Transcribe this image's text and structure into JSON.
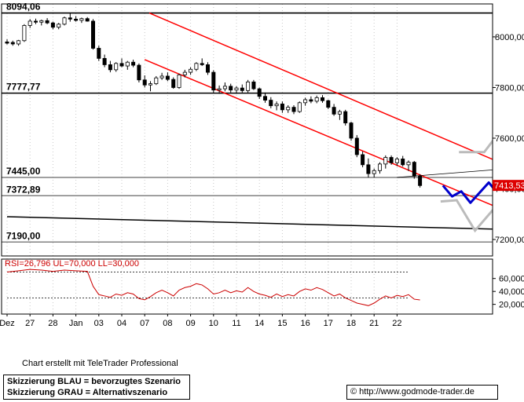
{
  "chart_data": {
    "type": "candlestick",
    "main_panel": {
      "y_axis_ticks": [
        8000,
        7800,
        7600,
        7400,
        7200
      ],
      "y_axis_tick_labels": [
        "8000,00",
        "7800,00",
        "7600,00",
        "7400,00",
        "7200,00"
      ],
      "ylim": [
        7135,
        8130
      ],
      "last_price_label": "7413,53",
      "last_price": 7413.53,
      "horizontal_levels": [
        {
          "value": 8094.06,
          "label": "8094,06",
          "color": "#000000"
        },
        {
          "value": 7777.77,
          "label": "7777,77",
          "color": "#000000"
        },
        {
          "value": 7445.0,
          "label": "7445,00",
          "color": "#808080"
        },
        {
          "value": 7372.89,
          "label": "7372,89",
          "color": "#808080"
        },
        {
          "value": 7190.0,
          "label": "7190,00",
          "color": "#808080"
        }
      ],
      "trend_channel": {
        "color": "#ff0000",
        "upper": [
          [
            6.2,
            8094
          ],
          [
            23.4,
            7430
          ]
        ],
        "lower": [
          [
            6.0,
            7910
          ],
          [
            23.4,
            7250
          ]
        ]
      },
      "long_trendline": {
        "color": "#000000",
        "points": [
          [
            0,
            7290
          ],
          [
            23.0,
            7237
          ]
        ]
      },
      "thin_trendline": {
        "color": "#000000",
        "points": [
          [
            17.0,
            7445
          ],
          [
            22.6,
            7485
          ]
        ]
      },
      "scenario_blue": {
        "name": "Skizzierung BLAU = bevorzugtes Szenario",
        "color": "#0000cc",
        "points": [
          [
            19.0,
            7413
          ],
          [
            19.4,
            7370
          ],
          [
            19.8,
            7390
          ],
          [
            20.2,
            7345
          ],
          [
            21.0,
            7425
          ],
          [
            21.4,
            7380
          ],
          [
            22.4,
            7500
          ],
          [
            23.2,
            7400
          ],
          [
            24.8,
            7205
          ],
          [
            25.6,
            7300
          ]
        ]
      },
      "scenario_gray": {
        "name": "Skizzierung GRAU = Alternativszenario",
        "color": "#bbbbbb",
        "upper": [
          [
            19.7,
            7545
          ],
          [
            20.8,
            7545
          ],
          [
            21.6,
            7640
          ],
          [
            22.2,
            7510
          ],
          [
            23.2,
            7780
          ],
          [
            23.8,
            7605
          ]
        ],
        "lower": [
          [
            18.9,
            7350
          ],
          [
            19.6,
            7355
          ],
          [
            20.4,
            7235
          ],
          [
            21.4,
            7340
          ],
          [
            22.2,
            7200
          ],
          [
            22.9,
            7360
          ]
        ]
      },
      "candles": [
        [
          0.0,
          7980,
          7990,
          7970,
          7975
        ],
        [
          0.25,
          7978,
          7985,
          7965,
          7972
        ],
        [
          0.5,
          7972,
          7988,
          7965,
          7985
        ],
        [
          0.75,
          7985,
          8050,
          7980,
          8045
        ],
        [
          1.0,
          8045,
          8070,
          8035,
          8062
        ],
        [
          1.25,
          8062,
          8072,
          8050,
          8058
        ],
        [
          1.5,
          8058,
          8068,
          8045,
          8064
        ],
        [
          1.75,
          8064,
          8074,
          8050,
          8055
        ],
        [
          2.0,
          8055,
          8060,
          8030,
          8038
        ],
        [
          2.25,
          8038,
          8055,
          8030,
          8050
        ],
        [
          2.5,
          8050,
          8080,
          8045,
          8075
        ],
        [
          2.75,
          8075,
          8094,
          8060,
          8070
        ],
        [
          3.0,
          8070,
          8082,
          8060,
          8065
        ],
        [
          3.25,
          8065,
          8076,
          8055,
          8072
        ],
        [
          3.5,
          8072,
          8078,
          8060,
          8062
        ],
        [
          3.75,
          8062,
          8070,
          7950,
          7955
        ],
        [
          4.0,
          7955,
          7965,
          7905,
          7915
        ],
        [
          4.25,
          7915,
          7930,
          7880,
          7890
        ],
        [
          4.5,
          7890,
          7905,
          7860,
          7870
        ],
        [
          4.75,
          7870,
          7900,
          7862,
          7895
        ],
        [
          5.0,
          7895,
          7915,
          7880,
          7885
        ],
        [
          5.25,
          7885,
          7905,
          7870,
          7900
        ],
        [
          5.5,
          7900,
          7910,
          7880,
          7888
        ],
        [
          5.75,
          7888,
          7895,
          7820,
          7830
        ],
        [
          6.0,
          7830,
          7848,
          7800,
          7810
        ],
        [
          6.25,
          7810,
          7825,
          7785,
          7815
        ],
        [
          6.5,
          7815,
          7845,
          7810,
          7838
        ],
        [
          6.75,
          7838,
          7858,
          7830,
          7845
        ],
        [
          7.0,
          7845,
          7860,
          7825,
          7832
        ],
        [
          7.25,
          7832,
          7840,
          7795,
          7800
        ],
        [
          7.5,
          7800,
          7855,
          7795,
          7850
        ],
        [
          7.75,
          7850,
          7870,
          7840,
          7860
        ],
        [
          8.0,
          7860,
          7880,
          7850,
          7872
        ],
        [
          8.25,
          7872,
          7900,
          7865,
          7895
        ],
        [
          8.5,
          7895,
          7915,
          7885,
          7890
        ],
        [
          8.75,
          7890,
          7900,
          7850,
          7860
        ],
        [
          9.0,
          7860,
          7868,
          7780,
          7790
        ],
        [
          9.25,
          7790,
          7808,
          7775,
          7795
        ],
        [
          9.5,
          7795,
          7820,
          7785,
          7805
        ],
        [
          9.75,
          7805,
          7815,
          7780,
          7790
        ],
        [
          10.0,
          7790,
          7805,
          7775,
          7798
        ],
        [
          10.25,
          7798,
          7812,
          7780,
          7788
        ],
        [
          10.5,
          7788,
          7830,
          7780,
          7822
        ],
        [
          10.75,
          7822,
          7830,
          7790,
          7795
        ],
        [
          11.0,
          7795,
          7800,
          7755,
          7765
        ],
        [
          11.25,
          7765,
          7780,
          7740,
          7750
        ],
        [
          11.5,
          7750,
          7762,
          7718,
          7728
        ],
        [
          11.75,
          7728,
          7745,
          7710,
          7735
        ],
        [
          12.0,
          7735,
          7745,
          7700,
          7712
        ],
        [
          12.25,
          7712,
          7730,
          7700,
          7722
        ],
        [
          12.5,
          7722,
          7730,
          7695,
          7705
        ],
        [
          12.75,
          7705,
          7745,
          7700,
          7740
        ],
        [
          13.0,
          7740,
          7760,
          7728,
          7752
        ],
        [
          13.25,
          7752,
          7765,
          7738,
          7746
        ],
        [
          13.5,
          7746,
          7768,
          7738,
          7760
        ],
        [
          13.75,
          7760,
          7770,
          7740,
          7748
        ],
        [
          14.0,
          7748,
          7752,
          7715,
          7722
        ],
        [
          14.25,
          7722,
          7735,
          7688,
          7695
        ],
        [
          14.5,
          7695,
          7712,
          7672,
          7705
        ],
        [
          14.75,
          7705,
          7712,
          7650,
          7660
        ],
        [
          15.0,
          7660,
          7665,
          7590,
          7600
        ],
        [
          15.25,
          7600,
          7612,
          7525,
          7535
        ],
        [
          15.5,
          7535,
          7548,
          7485,
          7495
        ],
        [
          15.75,
          7495,
          7520,
          7445,
          7460
        ],
        [
          16.0,
          7460,
          7480,
          7445,
          7472
        ],
        [
          16.25,
          7472,
          7505,
          7460,
          7498
        ],
        [
          16.5,
          7498,
          7532,
          7480,
          7524
        ],
        [
          16.75,
          7524,
          7532,
          7495,
          7503
        ],
        [
          17.0,
          7503,
          7525,
          7490,
          7518
        ],
        [
          17.25,
          7518,
          7530,
          7488,
          7495
        ],
        [
          17.5,
          7495,
          7512,
          7470,
          7505
        ],
        [
          17.75,
          7505,
          7510,
          7440,
          7450
        ],
        [
          18.0,
          7450,
          7458,
          7405,
          7413
        ]
      ]
    },
    "rsi_panel": {
      "label": "RSI=26,796 UL=70,000 LL=30,000",
      "ul": 70,
      "ll": 30,
      "ylim": [
        5,
        90
      ],
      "y_axis_ticks": [
        60,
        40,
        20
      ],
      "y_axis_tick_labels": [
        "60,000",
        "40,000",
        "20,000"
      ],
      "color": "#cc0000",
      "points": [
        [
          0.0,
          70
        ],
        [
          0.5,
          72
        ],
        [
          1.0,
          74
        ],
        [
          1.5,
          73
        ],
        [
          2.0,
          71
        ],
        [
          2.5,
          73
        ],
        [
          3.0,
          72
        ],
        [
          3.5,
          71
        ],
        [
          3.75,
          48
        ],
        [
          4.0,
          35
        ],
        [
          4.25,
          33
        ],
        [
          4.5,
          31
        ],
        [
          4.75,
          36
        ],
        [
          5.0,
          34
        ],
        [
          5.25,
          38
        ],
        [
          5.5,
          36
        ],
        [
          5.75,
          29
        ],
        [
          6.0,
          27
        ],
        [
          6.25,
          32
        ],
        [
          6.5,
          38
        ],
        [
          6.75,
          42
        ],
        [
          7.0,
          38
        ],
        [
          7.25,
          33
        ],
        [
          7.5,
          42
        ],
        [
          7.75,
          46
        ],
        [
          8.0,
          48
        ],
        [
          8.25,
          52
        ],
        [
          8.5,
          50
        ],
        [
          8.75,
          44
        ],
        [
          9.0,
          36
        ],
        [
          9.25,
          38
        ],
        [
          9.5,
          42
        ],
        [
          9.75,
          38
        ],
        [
          10.0,
          41
        ],
        [
          10.25,
          39
        ],
        [
          10.5,
          46
        ],
        [
          10.75,
          40
        ],
        [
          11.0,
          36
        ],
        [
          11.25,
          34
        ],
        [
          11.5,
          31
        ],
        [
          11.75,
          36
        ],
        [
          12.0,
          32
        ],
        [
          12.25,
          35
        ],
        [
          12.5,
          33
        ],
        [
          12.75,
          40
        ],
        [
          13.0,
          44
        ],
        [
          13.25,
          42
        ],
        [
          13.5,
          46
        ],
        [
          13.75,
          43
        ],
        [
          14.0,
          38
        ],
        [
          14.25,
          33
        ],
        [
          14.5,
          36
        ],
        [
          14.75,
          30
        ],
        [
          15.0,
          26
        ],
        [
          15.25,
          22
        ],
        [
          15.5,
          20
        ],
        [
          15.75,
          18
        ],
        [
          16.0,
          22
        ],
        [
          16.25,
          28
        ],
        [
          16.5,
          33
        ],
        [
          16.75,
          30
        ],
        [
          17.0,
          34
        ],
        [
          17.25,
          32
        ],
        [
          17.5,
          35
        ],
        [
          17.75,
          28
        ],
        [
          18.0,
          26.8
        ]
      ]
    },
    "x_axis": {
      "ticks": [
        {
          "x": 0,
          "label": "Dez"
        },
        {
          "x": 1,
          "label": "27"
        },
        {
          "x": 2,
          "label": "28"
        },
        {
          "x": 3,
          "label": "Jan"
        },
        {
          "x": 4,
          "label": "03"
        },
        {
          "x": 5,
          "label": "04"
        },
        {
          "x": 6,
          "label": "07"
        },
        {
          "x": 7,
          "label": "08"
        },
        {
          "x": 8,
          "label": "09"
        },
        {
          "x": 9,
          "label": "10"
        },
        {
          "x": 10,
          "label": "11"
        },
        {
          "x": 11,
          "label": "14"
        },
        {
          "x": 12,
          "label": "15"
        },
        {
          "x": 13,
          "label": "16"
        },
        {
          "x": 14,
          "label": "17"
        },
        {
          "x": 15,
          "label": "18"
        },
        {
          "x": 16,
          "label": "21"
        },
        {
          "x": 17,
          "label": "22"
        }
      ]
    }
  },
  "footer": {
    "credit": "Chart erstellt mit TeleTrader Professional",
    "legend_blue": "Skizzierung BLAU = bevorzugtes Szenario",
    "legend_gray": "Skizzierung GRAU = Alternativszenario",
    "source": "© http://www.godmode-trader.de"
  }
}
